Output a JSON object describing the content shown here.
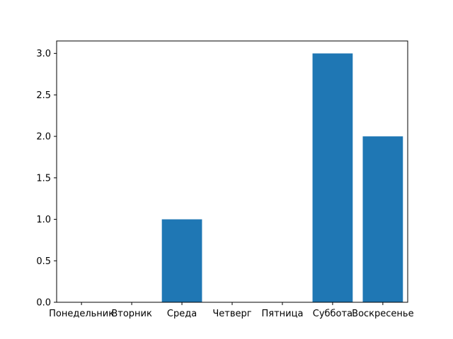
{
  "chart_data": {
    "type": "bar",
    "categories": [
      "Понедельник",
      "Вторник",
      "Среда",
      "Четверг",
      "Пятница",
      "Суббота",
      "Воскресенье"
    ],
    "values": [
      0,
      0,
      1,
      0,
      0,
      3,
      2
    ],
    "title": "",
    "xlabel": "",
    "ylabel": "",
    "ylim": [
      0,
      3.15
    ],
    "yticks": [
      "0.0",
      "0.5",
      "1.0",
      "1.5",
      "2.0",
      "2.5",
      "3.0"
    ],
    "bar_color": "#1f77b4",
    "grid": false,
    "legend": "none"
  }
}
